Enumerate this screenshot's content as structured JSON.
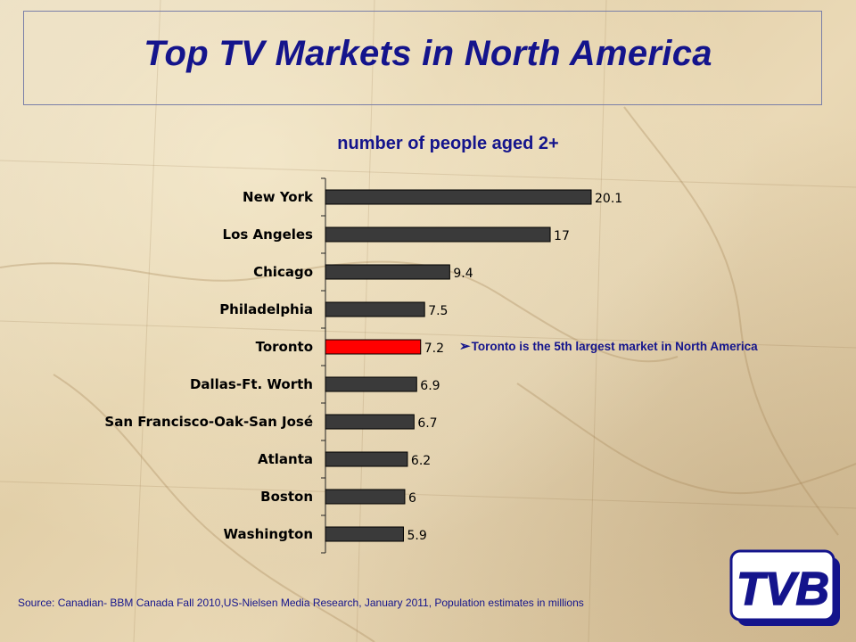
{
  "header": {
    "title": "Top TV Markets in North America",
    "subtitle": "number of people aged 2+"
  },
  "annotation": {
    "text": "Toronto is the 5th largest market in North America",
    "icon": "arrow-bullet-icon"
  },
  "footer": {
    "source": "Source: Canadian- BBM Canada Fall 2010,US-Nielsen  Media Research,  January  2011, Population estimates in millions"
  },
  "logo": {
    "text": "TVB"
  },
  "colors": {
    "bar": "#3a3a3a",
    "highlight": "#ff0000",
    "title": "#14148c"
  },
  "chart_data": {
    "type": "bar",
    "orientation": "horizontal",
    "title": "number of people aged 2+",
    "categories": [
      "New York",
      "Los Angeles",
      "Chicago",
      "Philadelphia",
      "Toronto",
      "Dallas-Ft. Worth",
      "San Francisco-Oak-San José",
      "Atlanta",
      "Boston",
      "Washington"
    ],
    "values": [
      20.1,
      17,
      9.4,
      7.5,
      7.2,
      6.9,
      6.7,
      6.2,
      6,
      5.9
    ],
    "value_labels": [
      "20.1",
      "17",
      "9.4",
      "7.5",
      "7.2",
      "6.9",
      "6.7",
      "6.2",
      "6",
      "5.9"
    ],
    "highlight": "Toronto",
    "xlim": [
      0,
      20.1
    ],
    "grid": false,
    "legend": "none",
    "xlabel": "",
    "ylabel": ""
  }
}
